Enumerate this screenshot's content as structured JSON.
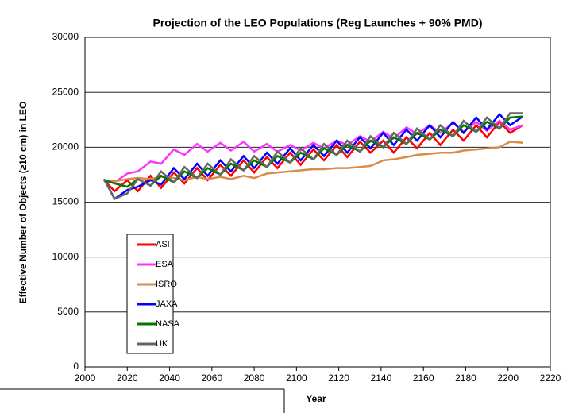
{
  "chart_data": {
    "type": "line",
    "title": "Projection of the LEO Populations (Reg Launches + 90% PMD)",
    "x_label": "Year",
    "y_label": "Effective Number of Objects (≥10 cm) in LEO",
    "x": [
      2009,
      2014,
      2020,
      2025,
      2031,
      2036,
      2042,
      2047,
      2053,
      2058,
      2064,
      2069,
      2075,
      2080,
      2086,
      2091,
      2097,
      2102,
      2108,
      2113,
      2119,
      2124,
      2130,
      2135,
      2141,
      2146,
      2152,
      2157,
      2163,
      2168,
      2174,
      2179,
      2185,
      2190,
      2196,
      2201,
      2207
    ],
    "series": [
      {
        "name": "ASI",
        "color": "#ff0000",
        "values": [
          17000,
          16000,
          17000,
          16000,
          17400,
          16300,
          17700,
          16700,
          18100,
          17000,
          18400,
          17400,
          18800,
          17700,
          19100,
          18100,
          19500,
          18400,
          19800,
          18800,
          20200,
          19100,
          20500,
          19500,
          20600,
          19500,
          20900,
          19900,
          21300,
          20200,
          21600,
          20600,
          22000,
          20900,
          22300,
          21300,
          22000
        ]
      },
      {
        "name": "ESA",
        "color": "#ff33ff",
        "values": [
          17000,
          16800,
          17600,
          17800,
          18700,
          18500,
          19800,
          19300,
          20300,
          19600,
          20400,
          19700,
          20500,
          19600,
          20300,
          19600,
          20200,
          19700,
          20400,
          19900,
          20600,
          20200,
          21000,
          20500,
          21400,
          20800,
          21800,
          21200,
          22000,
          21300,
          22200,
          21400,
          22300,
          21500,
          22400,
          21600,
          22000
        ]
      },
      {
        "name": "ISRO",
        "color": "#d98c4a",
        "values": [
          17000,
          16900,
          17100,
          17200,
          17100,
          17300,
          17200,
          17000,
          17300,
          17100,
          17300,
          17100,
          17400,
          17200,
          17600,
          17700,
          17800,
          17900,
          18000,
          18000,
          18100,
          18100,
          18200,
          18300,
          18800,
          18900,
          19100,
          19300,
          19400,
          19500,
          19500,
          19700,
          19800,
          19900,
          20000,
          20500,
          20400
        ]
      },
      {
        "name": "JAXA",
        "color": "#0000ff",
        "values": [
          17100,
          15300,
          16100,
          16400,
          17000,
          16600,
          18100,
          17100,
          18500,
          17400,
          18800,
          17800,
          19200,
          18100,
          19500,
          18500,
          19900,
          18800,
          20200,
          19200,
          20600,
          19500,
          20900,
          19900,
          21300,
          20200,
          21600,
          20600,
          22000,
          20900,
          22300,
          21300,
          22700,
          21600,
          23000,
          22000,
          22800
        ]
      },
      {
        "name": "NASA",
        "color": "#007700",
        "values": [
          17000,
          16700,
          16400,
          17100,
          16500,
          17400,
          16800,
          17800,
          17200,
          18100,
          17500,
          18500,
          17900,
          18800,
          18200,
          19200,
          18600,
          19500,
          18900,
          19900,
          19300,
          20200,
          19600,
          20600,
          20000,
          20900,
          20300,
          21300,
          20700,
          21600,
          21000,
          22000,
          21400,
          22300,
          21700,
          22700,
          22800
        ]
      },
      {
        "name": "UK",
        "color": "#666666",
        "values": [
          17100,
          15300,
          15800,
          17100,
          16500,
          17800,
          16800,
          18200,
          17200,
          18500,
          17500,
          18900,
          17900,
          19200,
          18200,
          19600,
          18600,
          19900,
          18900,
          20300,
          19300,
          20600,
          19600,
          21000,
          20000,
          21300,
          20300,
          21700,
          20700,
          22000,
          21000,
          22400,
          21400,
          22700,
          21700,
          23100,
          23100
        ]
      }
    ],
    "xlim": [
      2000,
      2220
    ],
    "xticks": [
      2000,
      2020,
      2040,
      2060,
      2080,
      2100,
      2120,
      2140,
      2160,
      2180,
      2200,
      2220
    ],
    "ylim": [
      0,
      30000
    ],
    "yticks": [
      0,
      5000,
      10000,
      15000,
      20000,
      25000,
      30000
    ],
    "grid": true,
    "legend_position": "left"
  }
}
